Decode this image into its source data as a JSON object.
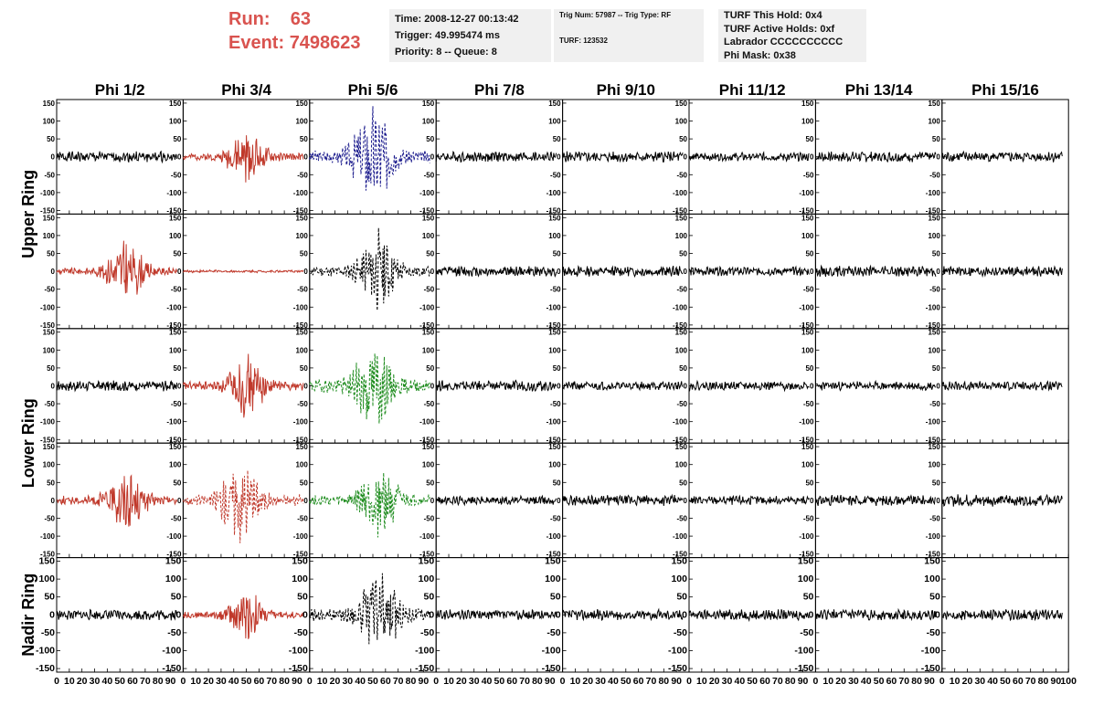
{
  "header": {
    "run_label": "Run:",
    "run_value": "63",
    "event_label": "Event:",
    "event_value": "7498623"
  },
  "info_time": {
    "time": "Time: 2008-12-27 00:13:42",
    "trigger": "Trigger: 49.995474 ms",
    "priority": "Priority: 8 -- Queue: 8"
  },
  "info_trig": {
    "trig": "Trig Num: 57987 -- Trig Type: RF",
    "turf": "TURF: 123532"
  },
  "info_turf": {
    "hold": "TURF This Hold: 0x4",
    "active": "TURF Active Holds: 0xf",
    "labrador": "Labrador CCCCCCCCCC",
    "phimask": "Phi Mask: 0x38"
  },
  "chart_data": {
    "type": "line",
    "description_free": true,
    "columns": [
      "Phi 1/2",
      "Phi 3/4",
      "Phi 5/6",
      "Phi 7/8",
      "Phi 9/10",
      "Phi 11/12",
      "Phi 13/14",
      "Phi 15/16"
    ],
    "ring_labels": [
      {
        "text": "Upper Ring",
        "rows": [
          0,
          1
        ]
      },
      {
        "text": "Lower Ring",
        "rows": [
          2,
          3
        ]
      },
      {
        "text": "Nadir Ring",
        "rows": [
          4,
          4
        ]
      }
    ],
    "xlim": [
      0,
      100
    ],
    "ylim": [
      -160,
      160
    ],
    "x_ticks": [
      "0",
      "10",
      "20",
      "30",
      "40",
      "50",
      "60",
      "70",
      "80",
      "90",
      "100"
    ],
    "y_ticks": [
      "150",
      "100",
      "50",
      "0",
      "-50",
      "-100",
      "-150"
    ],
    "trace_x_range": [
      0,
      95
    ],
    "colors": {
      "black": "#000000",
      "red": "#c0392b",
      "blue": "#1a1a8c",
      "green": "#1e8c1e"
    },
    "panels": [
      [
        {
          "color": "black",
          "dashed": false,
          "amp": 12,
          "peak": 0,
          "burst": 0,
          "seed": 1
        },
        {
          "color": "red",
          "dashed": false,
          "amp": 8,
          "peak": 50,
          "burst": 25,
          "seed": 2
        },
        {
          "color": "blue",
          "dashed": true,
          "amp": 15,
          "peak": 50,
          "burst": 50,
          "seed": 3
        },
        {
          "color": "black",
          "dashed": false,
          "amp": 12,
          "peak": 0,
          "burst": 0,
          "seed": 4
        },
        {
          "color": "black",
          "dashed": false,
          "amp": 12,
          "peak": 0,
          "burst": 0,
          "seed": 5
        },
        {
          "color": "black",
          "dashed": false,
          "amp": 10,
          "peak": 0,
          "burst": 0,
          "seed": 6
        },
        {
          "color": "black",
          "dashed": false,
          "amp": 12,
          "peak": 0,
          "burst": 0,
          "seed": 7
        },
        {
          "color": "black",
          "dashed": false,
          "amp": 12,
          "peak": 0,
          "burst": 0,
          "seed": 8
        }
      ],
      [
        {
          "color": "red",
          "dashed": false,
          "amp": 8,
          "peak": 55,
          "burst": 30,
          "seed": 9
        },
        {
          "color": "red",
          "dashed": false,
          "amp": 3,
          "peak": 0,
          "burst": 0,
          "seed": 10
        },
        {
          "color": "black",
          "dashed": true,
          "amp": 12,
          "peak": 55,
          "burst": 40,
          "seed": 11
        },
        {
          "color": "black",
          "dashed": false,
          "amp": 12,
          "peak": 0,
          "burst": 0,
          "seed": 12
        },
        {
          "color": "black",
          "dashed": false,
          "amp": 12,
          "peak": 0,
          "burst": 0,
          "seed": 13
        },
        {
          "color": "black",
          "dashed": false,
          "amp": 10,
          "peak": 0,
          "burst": 0,
          "seed": 14
        },
        {
          "color": "black",
          "dashed": false,
          "amp": 12,
          "peak": 0,
          "burst": 0,
          "seed": 15
        },
        {
          "color": "black",
          "dashed": false,
          "amp": 12,
          "peak": 0,
          "burst": 0,
          "seed": 16
        }
      ],
      [
        {
          "color": "black",
          "dashed": false,
          "amp": 12,
          "peak": 0,
          "burst": 0,
          "seed": 17
        },
        {
          "color": "red",
          "dashed": false,
          "amp": 10,
          "peak": 50,
          "burst": 28,
          "seed": 18
        },
        {
          "color": "green",
          "dashed": true,
          "amp": 15,
          "peak": 50,
          "burst": 40,
          "seed": 19
        },
        {
          "color": "black",
          "dashed": false,
          "amp": 12,
          "peak": 0,
          "burst": 0,
          "seed": 20
        },
        {
          "color": "black",
          "dashed": false,
          "amp": 10,
          "peak": 0,
          "burst": 0,
          "seed": 21
        },
        {
          "color": "black",
          "dashed": false,
          "amp": 10,
          "peak": 0,
          "burst": 0,
          "seed": 22
        },
        {
          "color": "black",
          "dashed": false,
          "amp": 10,
          "peak": 0,
          "burst": 0,
          "seed": 23
        },
        {
          "color": "black",
          "dashed": false,
          "amp": 10,
          "peak": 0,
          "burst": 0,
          "seed": 24
        }
      ],
      [
        {
          "color": "red",
          "dashed": false,
          "amp": 10,
          "peak": 55,
          "burst": 28,
          "seed": 25
        },
        {
          "color": "red",
          "dashed": true,
          "amp": 12,
          "peak": 45,
          "burst": 40,
          "seed": 26
        },
        {
          "color": "green",
          "dashed": true,
          "amp": 12,
          "peak": 55,
          "burst": 35,
          "seed": 27
        },
        {
          "color": "black",
          "dashed": false,
          "amp": 10,
          "peak": 0,
          "burst": 0,
          "seed": 28
        },
        {
          "color": "black",
          "dashed": false,
          "amp": 12,
          "peak": 0,
          "burst": 0,
          "seed": 29
        },
        {
          "color": "black",
          "dashed": false,
          "amp": 10,
          "peak": 0,
          "burst": 0,
          "seed": 30
        },
        {
          "color": "black",
          "dashed": false,
          "amp": 12,
          "peak": 0,
          "burst": 0,
          "seed": 31
        },
        {
          "color": "black",
          "dashed": false,
          "amp": 14,
          "peak": 0,
          "burst": 0,
          "seed": 32
        }
      ],
      [
        {
          "color": "black",
          "dashed": false,
          "amp": 12,
          "peak": 0,
          "burst": 0,
          "seed": 33
        },
        {
          "color": "red",
          "dashed": false,
          "amp": 8,
          "peak": 50,
          "burst": 22,
          "seed": 34
        },
        {
          "color": "black",
          "dashed": true,
          "amp": 14,
          "peak": 55,
          "burst": 45,
          "seed": 35
        },
        {
          "color": "black",
          "dashed": false,
          "amp": 12,
          "peak": 0,
          "burst": 0,
          "seed": 36
        },
        {
          "color": "black",
          "dashed": false,
          "amp": 12,
          "peak": 0,
          "burst": 0,
          "seed": 37
        },
        {
          "color": "black",
          "dashed": false,
          "amp": 12,
          "peak": 0,
          "burst": 0,
          "seed": 38
        },
        {
          "color": "black",
          "dashed": false,
          "amp": 12,
          "peak": 0,
          "burst": 0,
          "seed": 39
        },
        {
          "color": "black",
          "dashed": false,
          "amp": 12,
          "peak": 0,
          "burst": 0,
          "seed": 40
        }
      ]
    ]
  }
}
